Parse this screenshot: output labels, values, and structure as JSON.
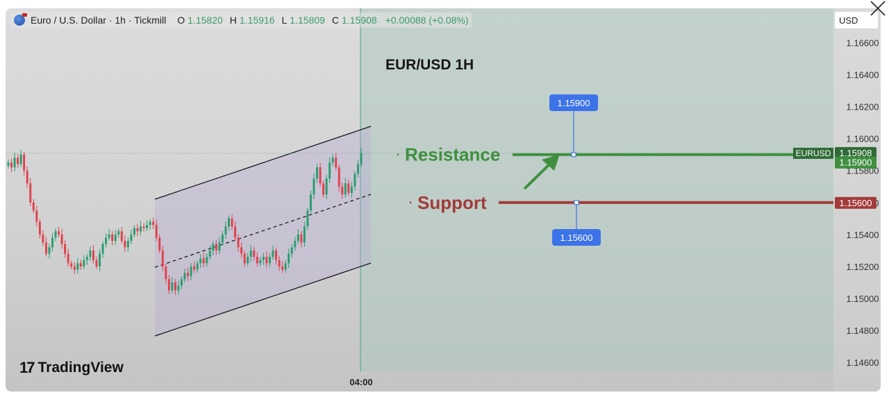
{
  "legend": {
    "symbol": "Euro / U.S. Dollar · 1h · Tickmill",
    "o_label": "O",
    "o_value": "1.15820",
    "h_label": "H",
    "h_value": "1.15916",
    "l_label": "L",
    "l_value": "1.15809",
    "c_label": "C",
    "c_value": "1.15908",
    "change": "+0.00088 (+0.08%)"
  },
  "currency": "USD",
  "brand": {
    "logo": "17",
    "name": "TradingView"
  },
  "chart_data": {
    "type": "candlestick",
    "title": "EUR/USD 1H",
    "ylim": [
      1.145,
      1.1675
    ],
    "y_ticks": [
      "1.16600",
      "1.16400",
      "1.16200",
      "1.16000",
      "1.15800",
      "1.15600",
      "1.15400",
      "1.15200",
      "1.15000",
      "1.14800",
      "1.14600"
    ],
    "y_tick_values": [
      1.166,
      1.164,
      1.162,
      1.16,
      1.158,
      1.156,
      1.154,
      1.152,
      1.15,
      1.148,
      1.146
    ],
    "x_ticks": [
      "04:00"
    ],
    "closes": [
      1.1585,
      1.1582,
      1.1588,
      1.1584,
      1.159,
      1.158,
      1.1572,
      1.156,
      1.1555,
      1.1548,
      1.154,
      1.1535,
      1.1528,
      1.1532,
      1.1538,
      1.1542,
      1.154,
      1.1534,
      1.1528,
      1.1522,
      1.152,
      1.1518,
      1.1522,
      1.152,
      1.1524,
      1.1526,
      1.153,
      1.1524,
      1.152,
      1.1528,
      1.1534,
      1.1538,
      1.154,
      1.1536,
      1.154,
      1.1542,
      1.1536,
      1.1532,
      1.1536,
      1.154,
      1.1544,
      1.1542,
      1.1545,
      1.1544,
      1.1546,
      1.1548,
      1.1546,
      1.1538,
      1.153,
      1.152,
      1.1512,
      1.1505,
      1.151,
      1.1505,
      1.1508,
      1.1512,
      1.1516,
      1.1514,
      1.152,
      1.1518,
      1.1522,
      1.1525,
      1.1522,
      1.1526,
      1.153,
      1.1534,
      1.153,
      1.1535,
      1.154,
      1.1545,
      1.155,
      1.1545,
      1.1538,
      1.1532,
      1.1528,
      1.1522,
      1.1526,
      1.153,
      1.1526,
      1.1522,
      1.1524,
      1.1526,
      1.1522,
      1.1526,
      1.153,
      1.1524,
      1.152,
      1.1518,
      1.1522,
      1.1528,
      1.1532,
      1.1536,
      1.154,
      1.1535,
      1.1545,
      1.1555,
      1.1565,
      1.1575,
      1.1582,
      1.1572,
      1.1565,
      1.1575,
      1.1585,
      1.1588,
      1.1582,
      1.157,
      1.1565,
      1.1572,
      1.1566,
      1.157,
      1.1578,
      1.1584,
      1.1591
    ],
    "last_price": "1.15908",
    "price_tag_symbol": "EURUSD",
    "levels": [
      {
        "name": "Resistance",
        "value": 1.159,
        "label": "1.15900",
        "color": "#3f8f3f",
        "axis_label": "1.15900"
      },
      {
        "name": "Support",
        "value": 1.156,
        "label": "1.15600",
        "color": "#a33a3a",
        "axis_label": "1.15600"
      }
    ],
    "colors": {
      "up": "#2a9d6f",
      "down": "#e0424f",
      "resistance": "#3f8f3f",
      "support": "#a33a3a",
      "callout": "#3d73e8"
    }
  }
}
